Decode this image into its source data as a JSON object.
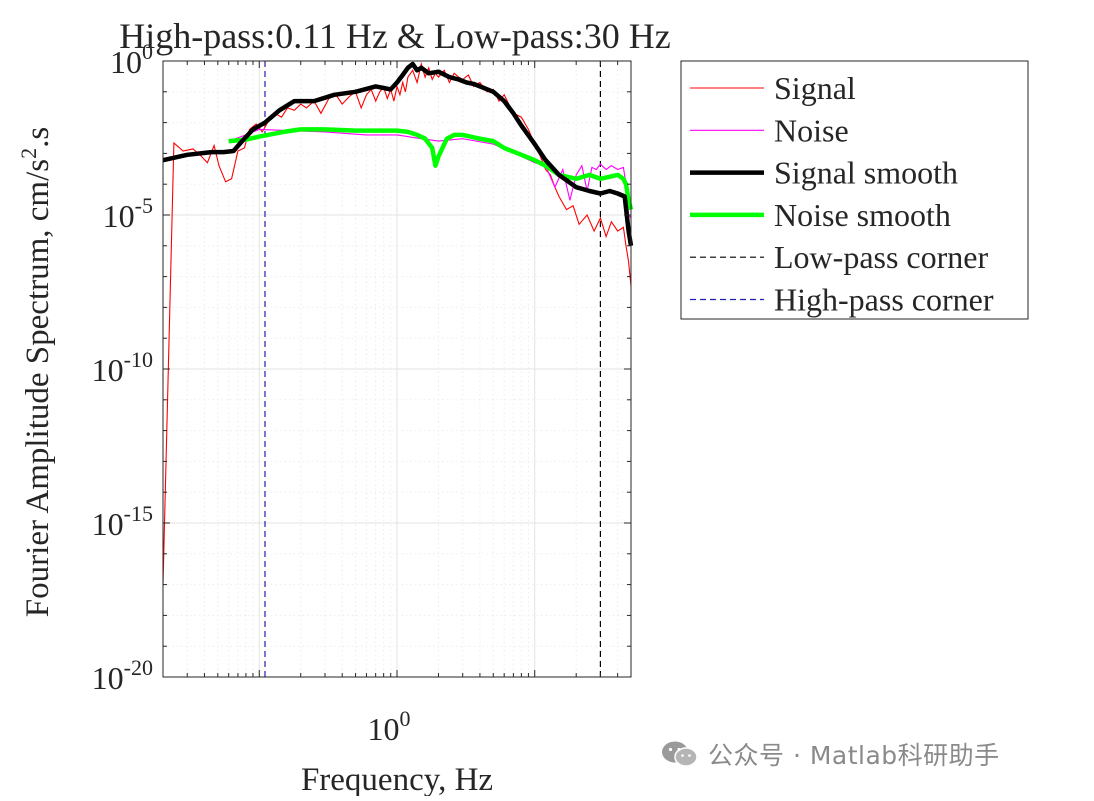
{
  "chart_data": {
    "type": "line",
    "title": "High-pass:0.11 Hz & Low-pass:30 Hz",
    "xlabel": "Frequency, Hz",
    "ylabel_main": "Fourier Amplitude Spectrum, cm/s",
    "ylabel_sup": "2",
    "ylabel_tail": ".s",
    "x_scale": "log",
    "y_scale": "log",
    "xlim": [
      0.02,
      50
    ],
    "ylim": [
      1e-20,
      1
    ],
    "x_ticks": [
      {
        "value": 1,
        "base": "10",
        "exp": "0"
      }
    ],
    "y_ticks": [
      {
        "value": 1,
        "base": "10",
        "exp": "0"
      },
      {
        "value": 1e-05,
        "base": "10",
        "exp": "-5"
      },
      {
        "value": 1e-10,
        "base": "10",
        "exp": "-10"
      },
      {
        "value": 1e-15,
        "base": "10",
        "exp": "-15"
      },
      {
        "value": 1e-20,
        "base": "10",
        "exp": "-20"
      }
    ],
    "grid": true,
    "legend_position": "outside right, top",
    "series": [
      {
        "name": "Signal",
        "color": "#ff0000",
        "style": "thin",
        "x": [
          0.02,
          0.024,
          0.028,
          0.033,
          0.038,
          0.042,
          0.047,
          0.051,
          0.057,
          0.063,
          0.07,
          0.078,
          0.085,
          0.095,
          0.105,
          0.115,
          0.13,
          0.145,
          0.16,
          0.18,
          0.2,
          0.22,
          0.25,
          0.28,
          0.32,
          0.36,
          0.4,
          0.45,
          0.5,
          0.55,
          0.6,
          0.65,
          0.7,
          0.75,
          0.8,
          0.85,
          0.9,
          0.95,
          1.0,
          1.05,
          1.1,
          1.15,
          1.2,
          1.3,
          1.4,
          1.5,
          1.6,
          1.7,
          1.8,
          1.9,
          2.0,
          2.2,
          2.4,
          2.6,
          2.8,
          3.0,
          3.3,
          3.6,
          4.0,
          4.5,
          5.0,
          5.5,
          6.0,
          7.0,
          8.0,
          9.0,
          10,
          11,
          12,
          13,
          14,
          15,
          17,
          19,
          21,
          24,
          27,
          30,
          33,
          36,
          40,
          44,
          46,
          48,
          50
        ],
        "y": [
          1e-17,
          0.0022,
          0.0012,
          0.0014,
          0.0008,
          0.0005,
          0.0018,
          0.0004,
          0.00012,
          0.00015,
          0.0012,
          0.0015,
          0.006,
          0.009,
          0.005,
          0.01,
          0.02,
          0.015,
          0.03,
          0.025,
          0.04,
          0.03,
          0.05,
          0.02,
          0.06,
          0.08,
          0.04,
          0.07,
          0.1,
          0.03,
          0.08,
          0.12,
          0.05,
          0.1,
          0.14,
          0.06,
          0.12,
          0.05,
          0.15,
          0.08,
          0.2,
          0.1,
          0.3,
          0.5,
          0.2,
          0.8,
          0.3,
          0.6,
          0.25,
          0.4,
          0.3,
          0.5,
          0.2,
          0.4,
          0.3,
          0.25,
          0.35,
          0.15,
          0.2,
          0.1,
          0.12,
          0.05,
          0.08,
          0.02,
          0.015,
          0.006,
          0.002,
          0.0008,
          0.0003,
          0.0002,
          8e-05,
          4e-05,
          1.5e-05,
          2e-05,
          5e-06,
          1e-05,
          3e-06,
          8e-06,
          2e-06,
          6e-06,
          3e-06,
          4e-06,
          1e-06,
          3e-07,
          5e-08
        ]
      },
      {
        "name": "Noise",
        "color": "#ff00ff",
        "style": "thin",
        "x": [
          0.06,
          0.08,
          0.1,
          0.3,
          0.6,
          1.0,
          1.5,
          2.0,
          3.0,
          5.0,
          8.0,
          10,
          12,
          14,
          16,
          18,
          20,
          22,
          24,
          26,
          28,
          30,
          33,
          36,
          40,
          44,
          46,
          48,
          50
        ],
        "y": [
          0.0025,
          0.004,
          0.006,
          0.005,
          0.004,
          0.004,
          0.003,
          0.0025,
          0.003,
          0.002,
          0.0008,
          0.0005,
          0.0004,
          8e-05,
          0.0003,
          3e-05,
          0.0002,
          0.0004,
          6e-05,
          0.00035,
          0.0003,
          0.00045,
          0.0003,
          0.0004,
          0.0003,
          0.00035,
          0.0001,
          1e-05,
          8e-06
        ]
      },
      {
        "name": "Signal smooth",
        "color": "#000000",
        "style": "thick",
        "x": [
          0.02,
          0.03,
          0.045,
          0.055,
          0.065,
          0.075,
          0.09,
          0.11,
          0.14,
          0.18,
          0.25,
          0.35,
          0.5,
          0.7,
          0.9,
          1.0,
          1.1,
          1.2,
          1.3,
          1.4,
          1.5,
          1.7,
          2.0,
          2.4,
          2.8,
          3.2,
          3.6,
          4.0,
          5.0,
          6.0,
          7.0,
          8.0,
          10,
          12,
          15,
          20,
          25,
          30,
          35,
          40,
          45,
          48,
          50
        ],
        "y": [
          0.0006,
          0.0009,
          0.0011,
          0.0011,
          0.0012,
          0.0025,
          0.006,
          0.01,
          0.025,
          0.05,
          0.05,
          0.08,
          0.1,
          0.15,
          0.12,
          0.2,
          0.35,
          0.6,
          0.8,
          0.5,
          0.6,
          0.4,
          0.45,
          0.3,
          0.25,
          0.2,
          0.18,
          0.15,
          0.1,
          0.05,
          0.02,
          0.008,
          0.002,
          0.0006,
          0.0002,
          8e-05,
          6e-05,
          5e-05,
          6e-05,
          5e-05,
          4e-05,
          3e-06,
          1e-06
        ]
      },
      {
        "name": "Noise smooth",
        "color": "#00ff00",
        "style": "thick",
        "x": [
          0.06,
          0.08,
          0.1,
          0.15,
          0.2,
          0.3,
          0.5,
          0.8,
          1.0,
          1.2,
          1.4,
          1.6,
          1.8,
          1.9,
          2.0,
          2.3,
          2.6,
          3.0,
          4.0,
          5.0,
          6.0,
          8.0,
          10,
          12,
          15,
          20,
          25,
          30,
          40,
          44,
          46,
          48,
          50
        ],
        "y": [
          0.0025,
          0.0028,
          0.0035,
          0.005,
          0.006,
          0.006,
          0.0055,
          0.0055,
          0.0055,
          0.005,
          0.004,
          0.003,
          0.0015,
          0.0004,
          0.0008,
          0.003,
          0.004,
          0.004,
          0.003,
          0.0025,
          0.0015,
          0.0009,
          0.0006,
          0.0004,
          0.0002,
          0.00015,
          0.0002,
          0.00015,
          0.0002,
          0.00015,
          0.0001,
          3e-05,
          1.5e-05
        ]
      },
      {
        "name": "Low-pass corner",
        "color": "#000000",
        "style": "dashed-vertical",
        "x": [
          30,
          30
        ],
        "y": [
          1e-20,
          1
        ]
      },
      {
        "name": "High-pass corner",
        "color": "#1f1fb0",
        "style": "dashed-vertical",
        "x": [
          0.11,
          0.11
        ],
        "y": [
          1e-20,
          1
        ]
      }
    ]
  },
  "watermark": {
    "icon": "wechat-icon",
    "text": "公众号 · Matlab科研助手"
  }
}
